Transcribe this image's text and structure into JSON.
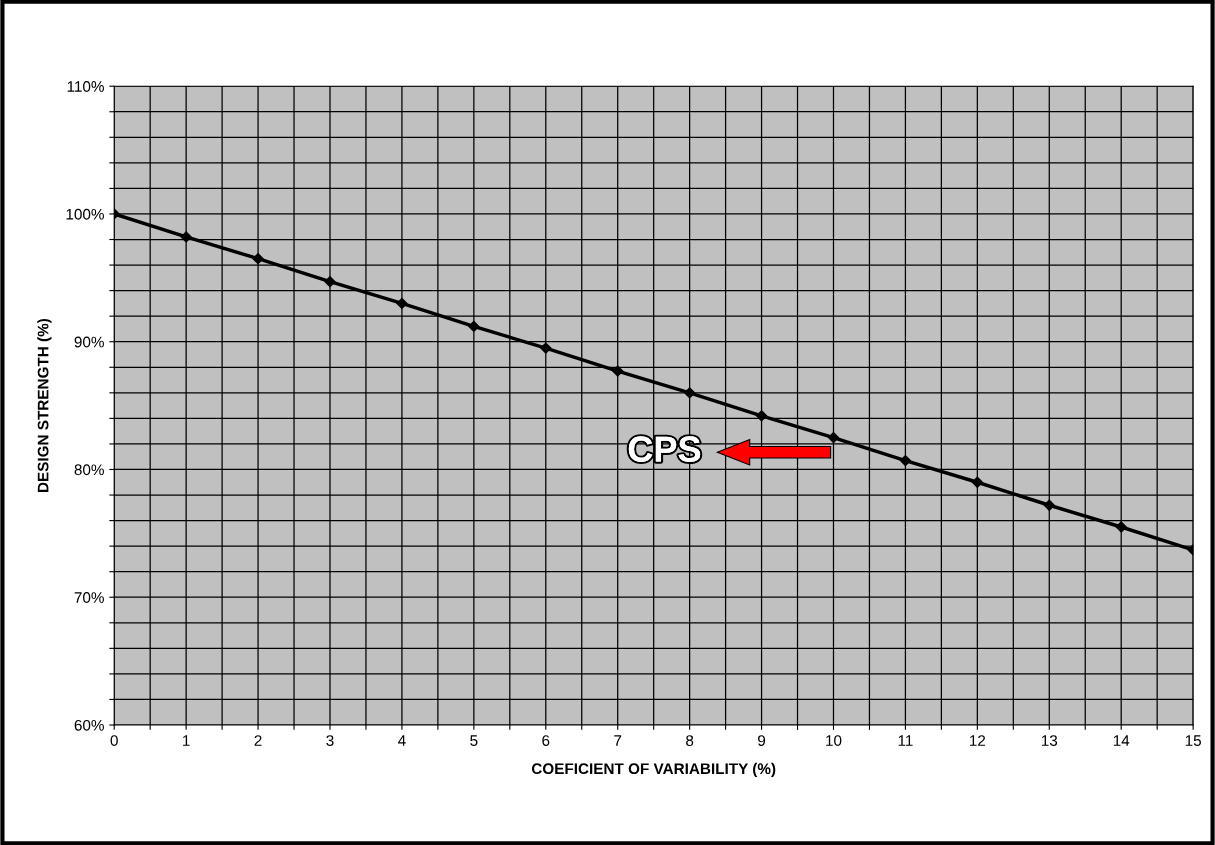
{
  "chart_data": {
    "type": "line",
    "xlabel": "COEFICIENT OF VARIABILITY (%)",
    "ylabel": "DESIGN STRENGTH (%)",
    "x": [
      0,
      1,
      2,
      3,
      4,
      5,
      6,
      7,
      8,
      9,
      10,
      11,
      12,
      13,
      14,
      15
    ],
    "series": [
      {
        "color": "#000000",
        "values": [
          100,
          98.2,
          96.5,
          94.7,
          93.0,
          91.2,
          89.5,
          87.7,
          86.0,
          84.2,
          82.5,
          80.7,
          79.0,
          77.2,
          75.5,
          73.7
        ]
      }
    ],
    "marker": "diamond",
    "line_style": "solid",
    "grid": true,
    "xlim": [
      0,
      15
    ],
    "xticks": [
      0,
      {
        "value": 0.5,
        "label": null
      },
      1,
      {
        "value": 1.5,
        "label": null
      },
      2,
      {
        "value": 2.5,
        "label": null
      },
      3,
      {
        "value": 3.5,
        "label": null
      },
      4,
      {
        "value": 4.5,
        "label": null
      },
      5,
      {
        "value": 5.5,
        "label": null
      },
      6,
      {
        "value": 6.5,
        "label": null
      },
      7,
      {
        "value": 7.5,
        "label": null
      },
      8,
      {
        "value": 8.5,
        "label": null
      },
      9,
      {
        "value": 9.5,
        "label": null
      },
      10,
      {
        "value": 10.5,
        "label": null
      },
      11,
      {
        "value": 11.5,
        "label": null
      },
      12,
      {
        "value": 12.5,
        "label": null
      },
      13,
      {
        "value": 13.5,
        "label": null
      },
      14,
      {
        "value": 14.5,
        "label": null
      },
      15
    ],
    "ylim": [
      60,
      110
    ],
    "yticks": [
      {
        "value": 60,
        "label": "60%"
      },
      {
        "value": 62,
        "label": null
      },
      {
        "value": 64,
        "label": null
      },
      {
        "value": 66,
        "label": null
      },
      {
        "value": 68,
        "label": null
      },
      {
        "value": 70,
        "label": "70%"
      },
      {
        "value": 72,
        "label": null
      },
      {
        "value": 74,
        "label": null
      },
      {
        "value": 76,
        "label": null
      },
      {
        "value": 78,
        "label": null
      },
      {
        "value": 80,
        "label": "80%"
      },
      {
        "value": 82,
        "label": null
      },
      {
        "value": 84,
        "label": null
      },
      {
        "value": 86,
        "label": null
      },
      {
        "value": 88,
        "label": null
      },
      {
        "value": 90,
        "label": "90%"
      },
      {
        "value": 92,
        "label": null
      },
      {
        "value": 94,
        "label": null
      },
      {
        "value": 96,
        "label": null
      },
      {
        "value": 98,
        "label": null
      },
      {
        "value": 100,
        "label": "100%"
      },
      {
        "value": 102,
        "label": null
      },
      {
        "value": 104,
        "label": null
      },
      {
        "value": 106,
        "label": null
      },
      {
        "value": 108,
        "label": null
      },
      {
        "value": 110,
        "label": "110%"
      }
    ],
    "annotations": [
      "CPS"
    ]
  }
}
